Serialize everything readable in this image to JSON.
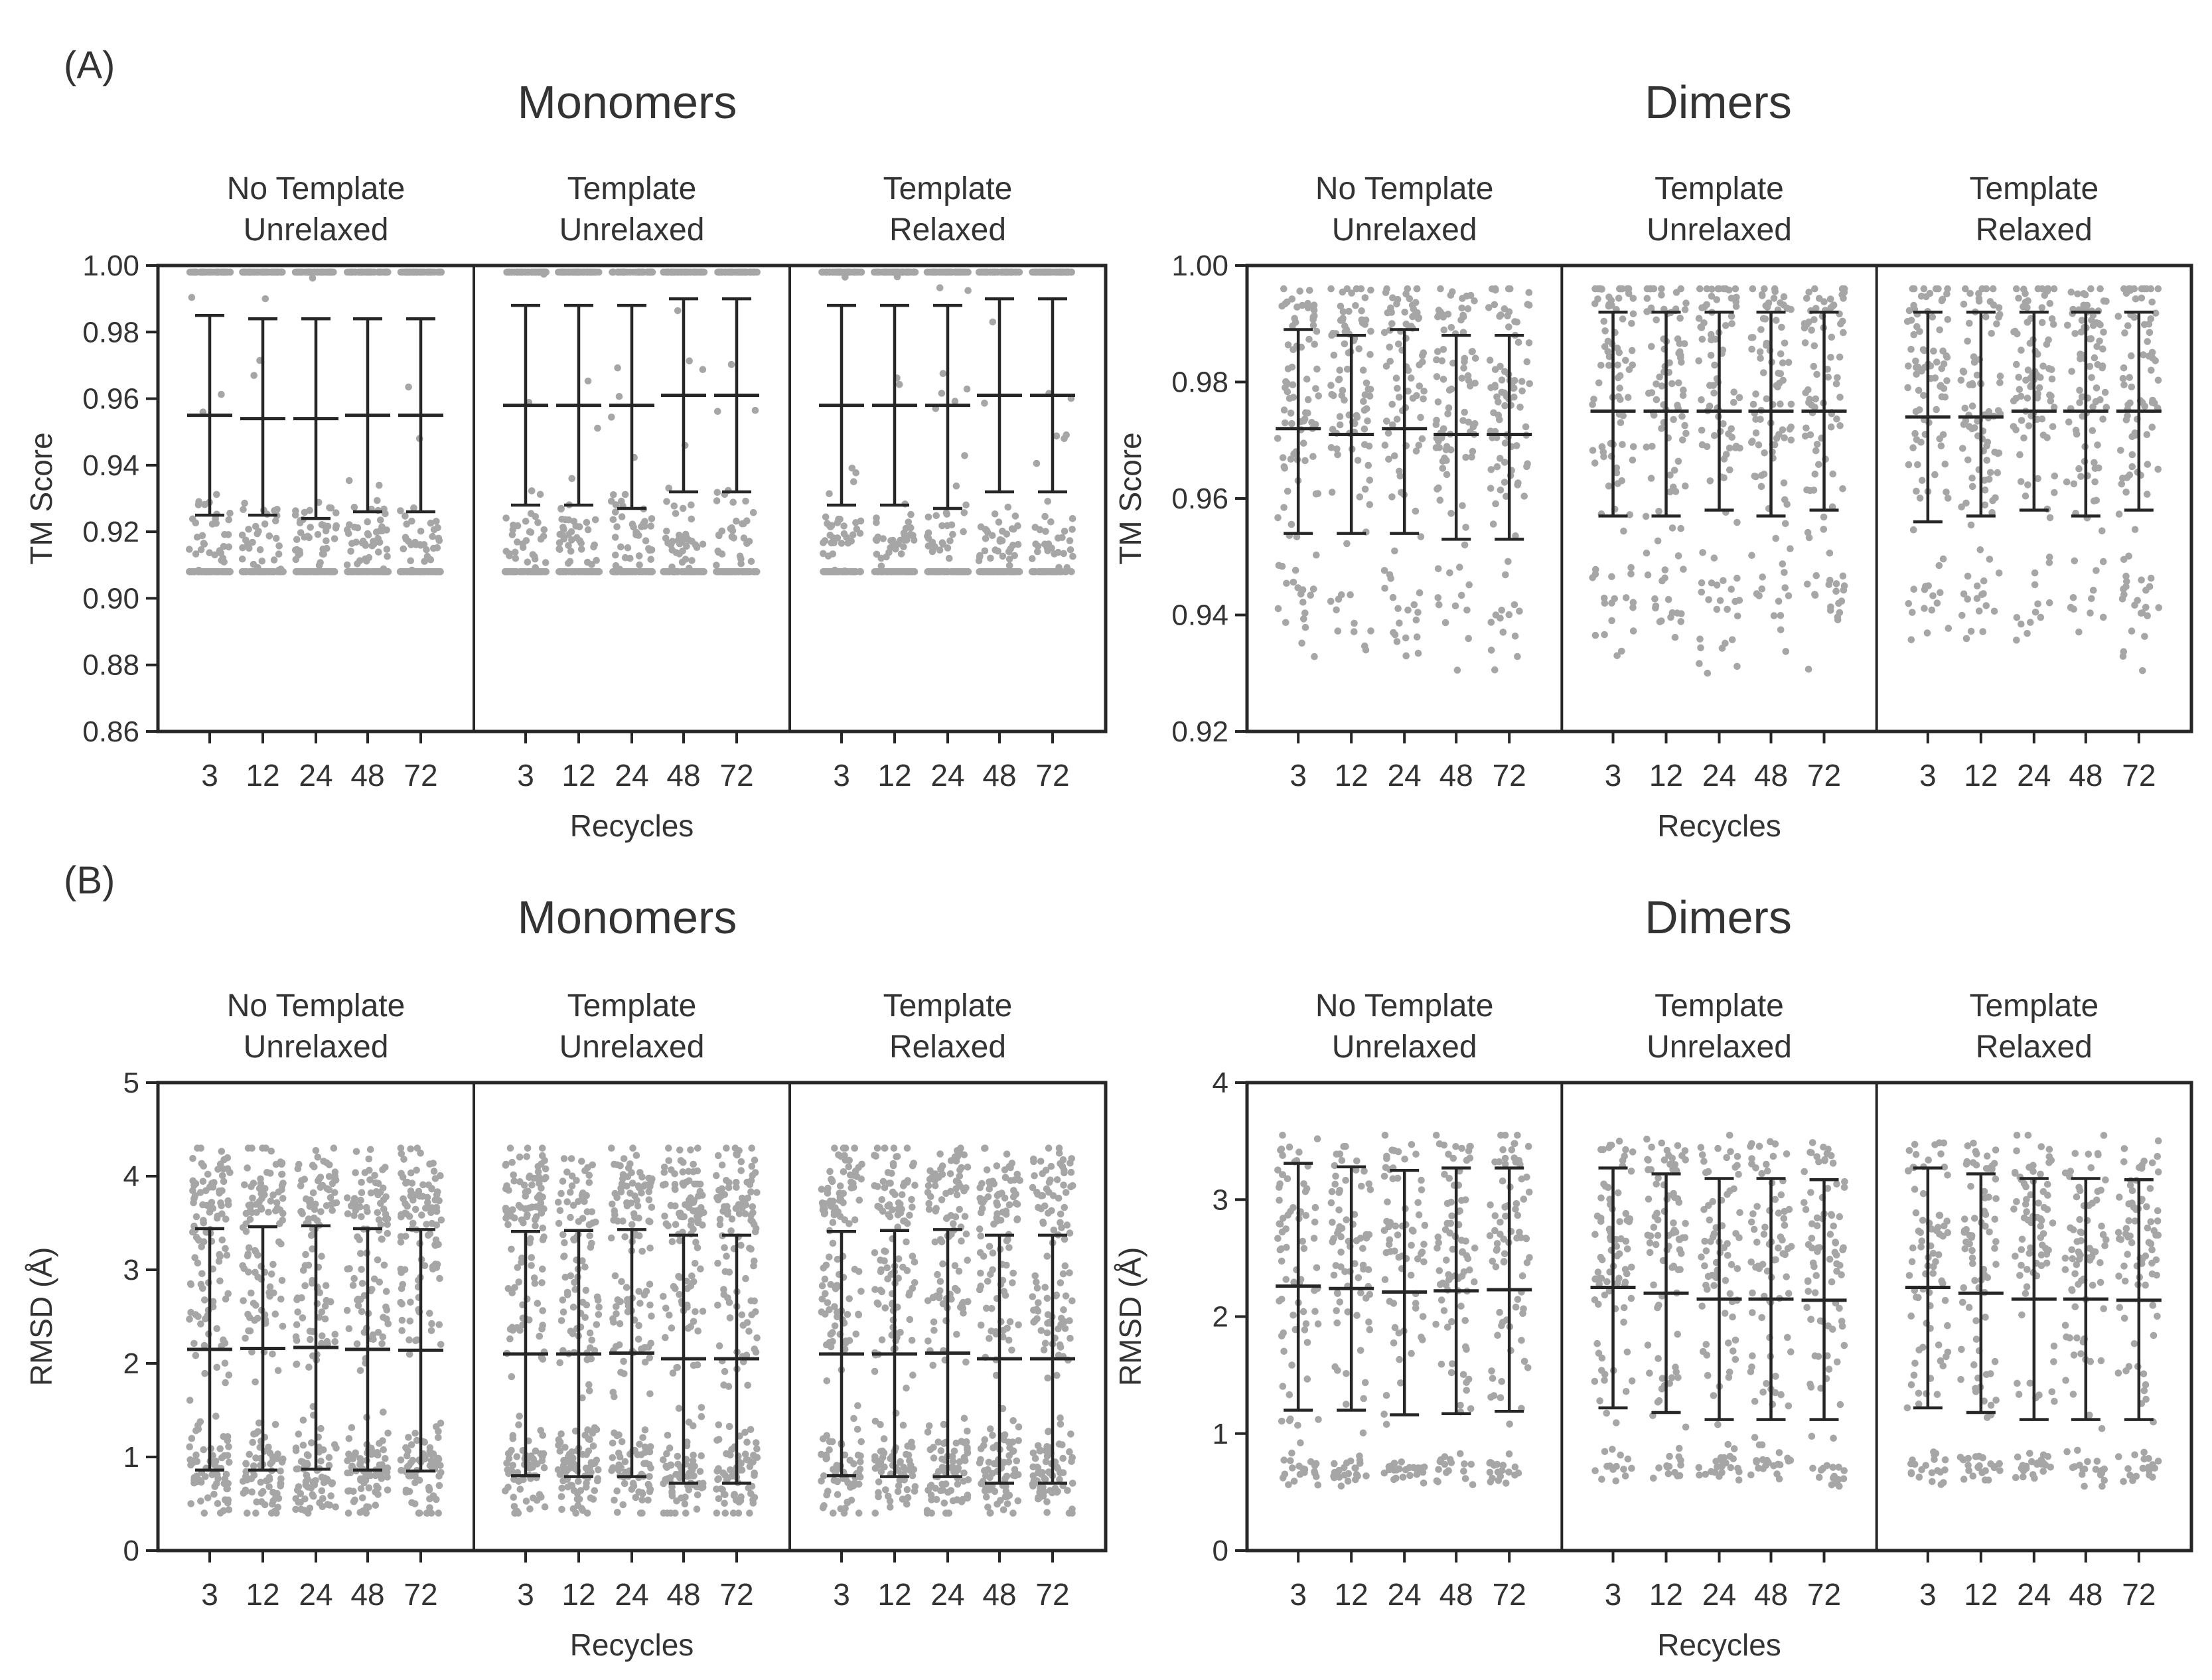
{
  "panel_labels": [
    "(A)",
    "(B)"
  ],
  "colors": {
    "points": "#a6a6a6",
    "errorbars": "#262626",
    "frame": "#262626",
    "text": "#333333"
  },
  "chart_data": [
    {
      "id": "A-monomers",
      "type": "scatter",
      "panel": "(A)",
      "title": "Monomers",
      "ylabel": "TM Score",
      "xlabel": "Recycles",
      "ylim": [
        0.86,
        1.0
      ],
      "yticks": [
        "0.86",
        "0.88",
        "0.90",
        "0.92",
        "0.94",
        "0.96",
        "0.98",
        "1.00"
      ],
      "categories": [
        "3",
        "12",
        "24",
        "48",
        "72"
      ],
      "groups": [
        {
          "line1": "No Template",
          "line2": "Unrelaxed",
          "mean": [
            0.955,
            0.954,
            0.954,
            0.955,
            0.955
          ],
          "sd_low": [
            0.925,
            0.925,
            0.924,
            0.926,
            0.926
          ],
          "sd_high": [
            0.985,
            0.984,
            0.984,
            0.984,
            0.984
          ]
        },
        {
          "line1": "Template",
          "line2": "Unrelaxed",
          "mean": [
            0.958,
            0.958,
            0.958,
            0.961,
            0.961
          ],
          "sd_low": [
            0.928,
            0.928,
            0.927,
            0.932,
            0.932
          ],
          "sd_high": [
            0.988,
            0.988,
            0.988,
            0.99,
            0.99
          ]
        },
        {
          "line1": "Template",
          "line2": "Relaxed",
          "mean": [
            0.958,
            0.958,
            0.958,
            0.961,
            0.961
          ],
          "sd_low": [
            0.928,
            0.928,
            0.927,
            0.932,
            0.932
          ],
          "sd_high": [
            0.988,
            0.988,
            0.988,
            0.99,
            0.99
          ]
        }
      ],
      "dist": {
        "clusters": [
          [
            0.994,
            0.93,
            0.76
          ],
          [
            0.918,
            0.006,
            0.2
          ],
          [
            0.886,
            0.003,
            0.04
          ]
        ],
        "lo": 0.908,
        "hi": 0.998,
        "n": 170
      }
    },
    {
      "id": "A-dimers",
      "type": "scatter",
      "panel": "(A)",
      "title": "Dimers",
      "ylabel": "TM Score",
      "xlabel": "Recycles",
      "ylim": [
        0.92,
        1.0
      ],
      "yticks": [
        "0.92",
        "0.94",
        "0.96",
        "0.98",
        "1.00"
      ],
      "categories": [
        "3",
        "12",
        "24",
        "48",
        "72"
      ],
      "groups": [
        {
          "line1": "No Template",
          "line2": "Unrelaxed",
          "mean": [
            0.972,
            0.971,
            0.972,
            0.971,
            0.971
          ],
          "sd_low": [
            0.954,
            0.954,
            0.954,
            0.953,
            0.953
          ],
          "sd_high": [
            0.989,
            0.988,
            0.989,
            0.988,
            0.988
          ]
        },
        {
          "line1": "Template",
          "line2": "Unrelaxed",
          "mean": [
            0.975,
            0.975,
            0.975,
            0.975,
            0.975
          ],
          "sd_low": [
            0.957,
            0.957,
            0.958,
            0.957,
            0.958
          ],
          "sd_high": [
            0.992,
            0.992,
            0.992,
            0.992,
            0.992
          ]
        },
        {
          "line1": "Template",
          "line2": "Relaxed",
          "mean": [
            0.974,
            0.974,
            0.975,
            0.975,
            0.975
          ],
          "sd_low": [
            0.956,
            0.957,
            0.958,
            0.957,
            0.958
          ],
          "sd_high": [
            0.992,
            0.992,
            0.992,
            0.992,
            0.992
          ]
        }
      ],
      "dist": {
        "clusters": [
          [
            0.993,
            0.003,
            0.2
          ],
          [
            0.976,
            0.01,
            0.62
          ],
          [
            0.942,
            0.005,
            0.18
          ]
        ],
        "lo": 0.93,
        "hi": 0.996,
        "n": 95
      }
    },
    {
      "id": "B-monomers",
      "type": "scatter",
      "panel": "(B)",
      "title": "Monomers",
      "ylabel": "RMSD (Å)",
      "xlabel": "Recycles",
      "ylim": [
        0,
        5
      ],
      "yticks": [
        "0",
        "1",
        "2",
        "3",
        "4",
        "5"
      ],
      "categories": [
        "3",
        "12",
        "24",
        "48",
        "72"
      ],
      "groups": [
        {
          "line1": "No Template",
          "line2": "Unrelaxed",
          "mean": [
            2.15,
            2.16,
            2.17,
            2.15,
            2.14
          ],
          "sd_low": [
            0.86,
            0.86,
            0.87,
            0.86,
            0.85
          ],
          "sd_high": [
            3.44,
            3.46,
            3.47,
            3.44,
            3.43
          ]
        },
        {
          "line1": "Template",
          "line2": "Unrelaxed",
          "mean": [
            2.1,
            2.1,
            2.11,
            2.05,
            2.05
          ],
          "sd_low": [
            0.8,
            0.79,
            0.79,
            0.72,
            0.72
          ],
          "sd_high": [
            3.41,
            3.42,
            3.43,
            3.37,
            3.37
          ]
        },
        {
          "line1": "Template",
          "line2": "Relaxed",
          "mean": [
            2.1,
            2.1,
            2.11,
            2.05,
            2.05
          ],
          "sd_low": [
            0.8,
            0.79,
            0.79,
            0.72,
            0.72
          ],
          "sd_high": [
            3.41,
            3.42,
            3.43,
            3.37,
            3.37
          ]
        }
      ],
      "dist": {
        "clusters": [
          [
            0.85,
            0.25,
            0.4
          ],
          [
            3.8,
            0.28,
            0.35
          ],
          [
            2.6,
            0.4,
            0.25
          ]
        ],
        "lo": 0.4,
        "hi": 4.3,
        "n": 170
      }
    },
    {
      "id": "B-dimers",
      "type": "scatter",
      "panel": "(B)",
      "title": "Dimers",
      "ylabel": "RMSD (Å)",
      "xlabel": "Recycles",
      "ylim": [
        0,
        4
      ],
      "yticks": [
        "0",
        "1",
        "2",
        "3",
        "4"
      ],
      "categories": [
        "3",
        "12",
        "24",
        "48",
        "72"
      ],
      "groups": [
        {
          "line1": "No Template",
          "line2": "Unrelaxed",
          "mean": [
            2.26,
            2.24,
            2.21,
            2.22,
            2.23
          ],
          "sd_low": [
            1.2,
            1.2,
            1.16,
            1.17,
            1.19
          ],
          "sd_high": [
            3.31,
            3.28,
            3.25,
            3.27,
            3.27
          ]
        },
        {
          "line1": "Template",
          "line2": "Unrelaxed",
          "mean": [
            2.25,
            2.2,
            2.15,
            2.15,
            2.14
          ],
          "sd_low": [
            1.22,
            1.18,
            1.12,
            1.12,
            1.12
          ],
          "sd_high": [
            3.27,
            3.22,
            3.18,
            3.18,
            3.17
          ]
        },
        {
          "line1": "Template",
          "line2": "Relaxed",
          "mean": [
            2.25,
            2.2,
            2.15,
            2.15,
            2.14
          ],
          "sd_low": [
            1.22,
            1.18,
            1.12,
            1.12,
            1.12
          ],
          "sd_high": [
            3.27,
            3.22,
            3.18,
            3.18,
            3.17
          ]
        }
      ],
      "dist": {
        "clusters": [
          [
            0.7,
            0.07,
            0.2
          ],
          [
            2.6,
            0.35,
            0.5
          ],
          [
            3.35,
            0.12,
            0.15
          ],
          [
            1.5,
            0.25,
            0.15
          ]
        ],
        "lo": 0.55,
        "hi": 3.55,
        "n": 95
      }
    }
  ]
}
